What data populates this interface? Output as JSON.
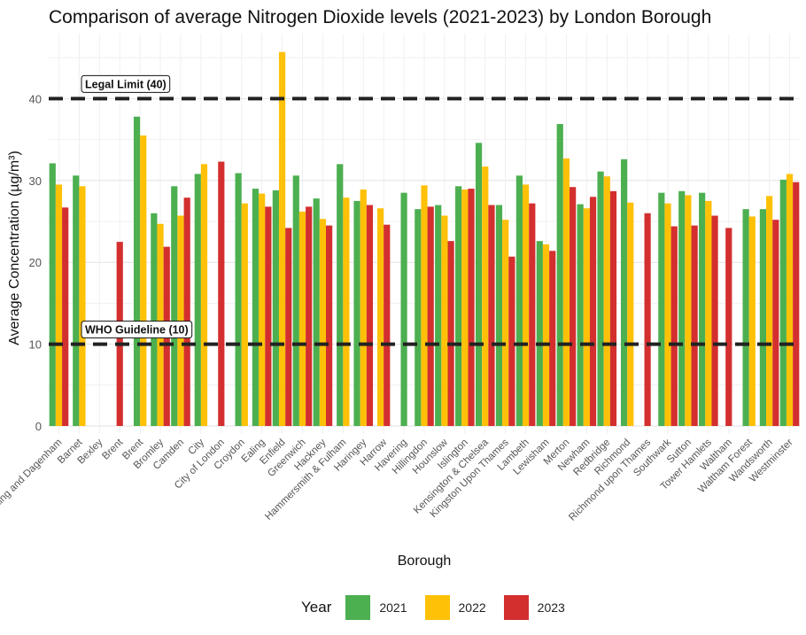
{
  "title": "Comparison of average Nitrogen Dioxide levels (2021-2023) by London Borough",
  "chart_data": {
    "type": "bar",
    "title": "Comparison of average Nitrogen Dioxide levels (2021-2023) by London Borough",
    "xlabel": "Borough",
    "ylabel": "Average Concentration (µg/m³)",
    "ylim": [
      0,
      47
    ],
    "yticks": [
      0,
      10,
      20,
      30,
      40
    ],
    "grid": true,
    "legend_position": "bottom",
    "legend_title": "Year",
    "categories": [
      "Barking and Dagenham",
      "Barnet",
      "Bexley",
      "Brent",
      "Brent",
      "Bromley",
      "Camden",
      "City",
      "City of London",
      "Croydon",
      "Ealing",
      "Enfield",
      "Greenwich",
      "Hackney",
      "Hammersmith & Fulham",
      "Haringey",
      "Harrow",
      "Havering",
      "Hillingdon",
      "Hounslow",
      "Islington",
      "Kensington & Chelsea",
      "Kingston Upon Thames",
      "Lambeth",
      "Lewisham",
      "Merton",
      "Newham",
      "Redbridge",
      "Richmond",
      "Richmond upon Thames",
      "Southwark",
      "Sutton",
      "Tower Hamlets",
      "Waltham",
      "Waltham Forest",
      "Wandsworth",
      "Westminster"
    ],
    "series": [
      {
        "name": "2021",
        "color": "#4CAF50",
        "values": [
          32.1,
          30.6,
          null,
          null,
          37.8,
          26.0,
          29.3,
          30.8,
          null,
          30.9,
          29.0,
          28.8,
          30.6,
          27.8,
          32.0,
          27.5,
          null,
          28.5,
          26.5,
          27.0,
          29.3,
          34.6,
          27.0,
          30.6,
          22.6,
          36.9,
          27.1,
          31.1,
          32.6,
          null,
          28.5,
          28.7,
          28.5,
          null,
          26.5,
          26.5,
          30.1
        ]
      },
      {
        "name": "2022",
        "color": "#FFC107",
        "values": [
          29.5,
          29.3,
          null,
          null,
          35.5,
          24.7,
          25.7,
          32.0,
          null,
          27.2,
          28.4,
          45.7,
          26.2,
          25.3,
          27.9,
          28.9,
          26.6,
          null,
          29.4,
          25.7,
          28.9,
          31.7,
          25.2,
          29.5,
          22.2,
          32.7,
          26.6,
          30.5,
          27.3,
          null,
          27.2,
          28.2,
          27.5,
          null,
          25.6,
          28.1,
          30.8
        ]
      },
      {
        "name": "2023",
        "color": "#D32F2F",
        "values": [
          26.7,
          null,
          null,
          22.5,
          null,
          21.9,
          27.9,
          null,
          32.3,
          null,
          26.8,
          24.2,
          26.8,
          24.5,
          null,
          27.0,
          24.6,
          null,
          26.8,
          22.6,
          29.0,
          27.0,
          20.7,
          27.2,
          21.4,
          29.2,
          28.0,
          28.7,
          null,
          26.0,
          24.4,
          24.5,
          25.7,
          24.2,
          null,
          25.2,
          29.8
        ]
      }
    ],
    "reference_lines": [
      {
        "label": "Legal Limit (40)",
        "value": 40
      },
      {
        "label": "WHO Guideline (10)",
        "value": 10
      }
    ]
  }
}
